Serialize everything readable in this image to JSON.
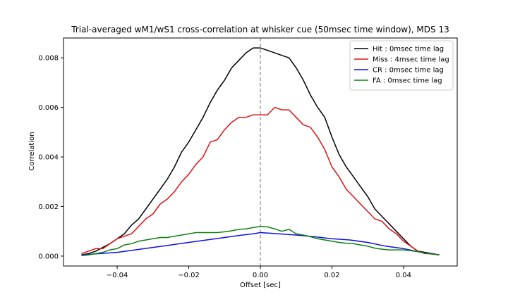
{
  "chart_data": {
    "type": "line",
    "title": "Trial-averaged wM1/wS1 cross-correlation at whisker cue (50msec time window), MDS 13",
    "xlabel": "Offset [sec]",
    "ylabel": "Correlation",
    "xlim": [
      -0.055,
      0.055
    ],
    "ylim": [
      -0.0004,
      0.0088
    ],
    "xticks": [
      -0.04,
      -0.02,
      0.0,
      0.02,
      0.04
    ],
    "xtick_labels": [
      "−0.04",
      "−0.02",
      "0.00",
      "0.02",
      "0.04"
    ],
    "yticks": [
      0.0,
      0.002,
      0.004,
      0.006,
      0.008
    ],
    "ytick_labels": [
      "0.000",
      "0.002",
      "0.004",
      "0.006",
      "0.008"
    ],
    "vline": {
      "x": 0.0,
      "color": "#a0a0a0",
      "style": "dashed"
    },
    "legend_position": "top-right",
    "grid": false,
    "series": [
      {
        "name": "Hit : 0msec time lag",
        "color": "#000000",
        "x": [
          -0.05,
          -0.048,
          -0.046,
          -0.044,
          -0.042,
          -0.04,
          -0.038,
          -0.036,
          -0.034,
          -0.032,
          -0.03,
          -0.028,
          -0.026,
          -0.024,
          -0.022,
          -0.02,
          -0.018,
          -0.016,
          -0.014,
          -0.012,
          -0.01,
          -0.008,
          -0.006,
          -0.004,
          -0.002,
          0.0,
          0.002,
          0.004,
          0.006,
          0.008,
          0.01,
          0.012,
          0.014,
          0.016,
          0.018,
          0.02,
          0.022,
          0.024,
          0.026,
          0.028,
          0.03,
          0.032,
          0.034,
          0.036,
          0.038,
          0.04,
          0.042,
          0.044,
          0.046,
          0.048,
          0.05
        ],
        "y": [
          5e-05,
          0.0001,
          0.0002,
          0.00035,
          0.0005,
          0.0007,
          0.0009,
          0.00125,
          0.0015,
          0.0019,
          0.0023,
          0.0027,
          0.0031,
          0.0036,
          0.0042,
          0.0046,
          0.0051,
          0.0056,
          0.0062,
          0.0067,
          0.0071,
          0.0076,
          0.0079,
          0.0082,
          0.0084,
          0.0084,
          0.0083,
          0.0082,
          0.0081,
          0.008,
          0.0076,
          0.0071,
          0.0065,
          0.006,
          0.0056,
          0.0048,
          0.0041,
          0.0036,
          0.0032,
          0.0028,
          0.0024,
          0.0019,
          0.0016,
          0.0013,
          0.001,
          0.0007,
          0.0004,
          0.0002,
          0.00015,
          0.0001,
          5e-05
        ]
      },
      {
        "name": "Miss : 4msec time lag",
        "color": "#e01010",
        "x": [
          -0.05,
          -0.048,
          -0.046,
          -0.044,
          -0.042,
          -0.04,
          -0.038,
          -0.036,
          -0.034,
          -0.032,
          -0.03,
          -0.028,
          -0.026,
          -0.024,
          -0.022,
          -0.02,
          -0.018,
          -0.016,
          -0.014,
          -0.012,
          -0.01,
          -0.008,
          -0.006,
          -0.004,
          -0.002,
          0.0,
          0.002,
          0.004,
          0.006,
          0.008,
          0.01,
          0.012,
          0.014,
          0.016,
          0.018,
          0.02,
          0.022,
          0.024,
          0.026,
          0.028,
          0.03,
          0.032,
          0.034,
          0.036,
          0.038,
          0.04,
          0.042,
          0.044,
          0.046,
          0.048,
          0.05
        ],
        "y": [
          0.0001,
          0.0002,
          0.0003,
          0.0003,
          0.0005,
          0.0007,
          0.0008,
          0.0009,
          0.0012,
          0.0015,
          0.0017,
          0.0021,
          0.0023,
          0.0026,
          0.003,
          0.0033,
          0.0037,
          0.004,
          0.0046,
          0.0047,
          0.0051,
          0.0054,
          0.0056,
          0.0056,
          0.0057,
          0.0057,
          0.0057,
          0.006,
          0.0059,
          0.0059,
          0.0056,
          0.0053,
          0.0052,
          0.0048,
          0.0043,
          0.0036,
          0.0032,
          0.0027,
          0.0024,
          0.0021,
          0.0018,
          0.0015,
          0.0014,
          0.0011,
          0.0009,
          0.0006,
          0.0004,
          0.0002,
          0.0001,
          0.0001,
          5e-05
        ]
      },
      {
        "name": "CR : 0msec time lag",
        "color": "#1010e0",
        "x": [
          -0.05,
          -0.045,
          -0.04,
          -0.035,
          -0.03,
          -0.025,
          -0.02,
          -0.015,
          -0.01,
          -0.005,
          -0.002,
          0.0,
          0.005,
          0.01,
          0.015,
          0.02,
          0.025,
          0.03,
          0.035,
          0.04,
          0.045,
          0.05
        ],
        "y": [
          5e-05,
          0.0001,
          0.00015,
          0.00025,
          0.00035,
          0.00045,
          0.00055,
          0.00065,
          0.00075,
          0.00085,
          0.0009,
          0.00095,
          0.0009,
          0.00085,
          0.00078,
          0.0007,
          0.00065,
          0.00055,
          0.0004,
          0.0003,
          0.00015,
          5e-05
        ]
      },
      {
        "name": "FA : 0msec time lag",
        "color": "#108010",
        "x": [
          -0.05,
          -0.048,
          -0.046,
          -0.044,
          -0.042,
          -0.04,
          -0.038,
          -0.036,
          -0.034,
          -0.032,
          -0.03,
          -0.028,
          -0.026,
          -0.024,
          -0.022,
          -0.02,
          -0.018,
          -0.016,
          -0.014,
          -0.012,
          -0.01,
          -0.008,
          -0.006,
          -0.004,
          -0.002,
          0.0,
          0.002,
          0.004,
          0.006,
          0.008,
          0.01,
          0.012,
          0.014,
          0.016,
          0.018,
          0.02,
          0.022,
          0.024,
          0.026,
          0.028,
          0.03,
          0.032,
          0.034,
          0.036,
          0.038,
          0.04,
          0.042,
          0.044,
          0.046,
          0.048,
          0.05
        ],
        "y": [
          2e-05,
          5e-05,
          0.0001,
          0.00015,
          0.00025,
          0.0003,
          0.00045,
          0.0005,
          0.0006,
          0.00065,
          0.0007,
          0.00075,
          0.00075,
          0.0008,
          0.00085,
          0.0009,
          0.00095,
          0.00095,
          0.00095,
          0.00095,
          0.00098,
          0.00102,
          0.00108,
          0.0011,
          0.00115,
          0.0012,
          0.00118,
          0.0011,
          0.001,
          0.00108,
          0.0009,
          0.00085,
          0.00078,
          0.0007,
          0.00065,
          0.0006,
          0.00055,
          0.00052,
          0.0005,
          0.00045,
          0.0004,
          0.00032,
          0.00028,
          0.00025,
          0.00025,
          0.00025,
          0.00022,
          0.00018,
          0.00012,
          8e-05,
          5e-05
        ]
      }
    ]
  }
}
